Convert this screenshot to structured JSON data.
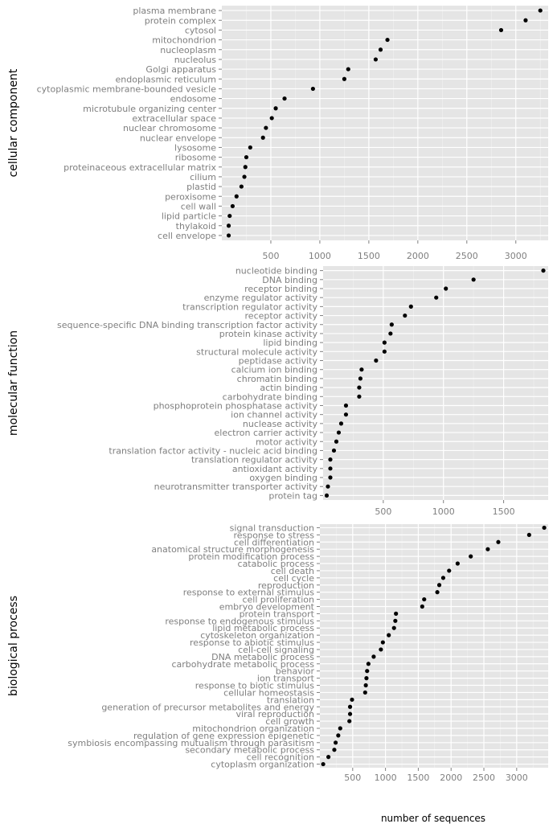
{
  "chart_data": [
    {
      "type": "scatter",
      "title": "cellular component",
      "xlabel": "",
      "categories": [
        "plasma membrane",
        "protein complex",
        "cytosol",
        "mitochondrion",
        "nucleoplasm",
        "nucleolus",
        "Golgi apparatus",
        "endoplasmic reticulum",
        "cytoplasmic membrane-bounded vesicle",
        "endosome",
        "microtubule organizing center",
        "extracellular space",
        "nuclear chromosome",
        "nuclear envelope",
        "lysosome",
        "ribosome",
        "proteinaceous extracellular matrix",
        "cilium",
        "plastid",
        "peroxisome",
        "cell wall",
        "lipid particle",
        "thylakoid",
        "cell envelope"
      ],
      "values": [
        3250,
        3100,
        2850,
        1690,
        1620,
        1570,
        1290,
        1250,
        930,
        640,
        550,
        510,
        450,
        420,
        290,
        250,
        240,
        230,
        200,
        150,
        110,
        80,
        70,
        70
      ],
      "xlim": [
        0,
        3330
      ],
      "xticks": [
        500,
        1000,
        1500,
        2000,
        2500,
        3000
      ],
      "xtick_labels": [
        "500",
        "1000",
        "1500",
        "2000",
        "2500",
        "3000"
      ]
    },
    {
      "type": "scatter",
      "title": "molecular function",
      "xlabel": "",
      "categories": [
        "nucleotide binding",
        "DNA binding",
        "receptor binding",
        "enzyme regulator activity",
        "transcription regulator activity",
        "receptor activity",
        "sequence-specific DNA binding transcription factor activity",
        "protein kinase activity",
        "lipid binding",
        "structural molecule activity",
        "peptidase activity",
        "calcium ion binding",
        "chromatin binding",
        "actin binding",
        "carbohydrate binding",
        "phosphoprotein phosphatase activity",
        "ion channel activity",
        "nuclease activity",
        "electron carrier activity",
        "motor activity",
        "translation factor activity - nucleic acid binding",
        "translation regulator activity",
        "antioxidant activity",
        "oxygen binding",
        "neurotransmitter transporter activity",
        "protein tag"
      ],
      "values": [
        1830,
        1250,
        1020,
        940,
        730,
        680,
        570,
        560,
        510,
        510,
        440,
        320,
        310,
        300,
        300,
        190,
        190,
        150,
        130,
        110,
        90,
        60,
        60,
        60,
        40,
        30
      ],
      "xlim": [
        0,
        1870
      ],
      "xticks": [
        500,
        1000,
        1500
      ],
      "xtick_labels": [
        "500",
        "1000",
        "1500"
      ]
    },
    {
      "type": "scatter",
      "title": "biological process",
      "xlabel": "number of sequences",
      "categories": [
        "signal transduction",
        "response to stress",
        "cell differentiation",
        "anatomical structure morphogenesis",
        "protein modification process",
        "catabolic process",
        "cell death",
        "cell cycle",
        "reproduction",
        "response to external stimulus",
        "cell proliferation",
        "embryo development",
        "protein transport",
        "response to endogenous stimulus",
        "lipid metabolic process",
        "cytoskeleton organization",
        "response to abiotic stimulus",
        "cell-cell signaling",
        "DNA metabolic process",
        "carbohydrate metabolic process",
        "behavior",
        "ion transport",
        "response to biotic stimulus",
        "cellular homeostasis",
        "translation",
        "generation of precursor metabolites and energy",
        "viral reproduction",
        "cell growth",
        "mitochondrion organization",
        "regulation of gene expression epigenetic",
        "symbiosis encompassing mutualism through parasitism",
        "secondary metabolic process",
        "cell recognition",
        "cytoplasm organization"
      ],
      "values": [
        3420,
        3190,
        2720,
        2560,
        2300,
        2100,
        1970,
        1880,
        1820,
        1790,
        1590,
        1560,
        1160,
        1150,
        1130,
        1050,
        960,
        930,
        820,
        740,
        720,
        710,
        700,
        690,
        490,
        460,
        460,
        450,
        310,
        280,
        240,
        220,
        130,
        50
      ],
      "xlim": [
        0,
        3480
      ],
      "xticks": [
        500,
        1000,
        1500,
        2000,
        2500,
        3000
      ],
      "xtick_labels": [
        "500",
        "1000",
        "1500",
        "2000",
        "2500",
        "3000"
      ]
    }
  ]
}
